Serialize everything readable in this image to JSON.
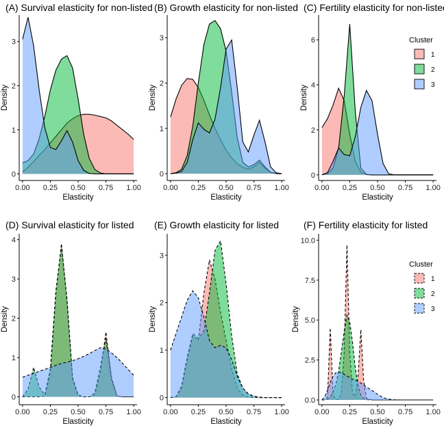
{
  "colors": {
    "cluster1": "#F8766D",
    "cluster2": "#00BA38",
    "cluster3": "#619CFF",
    "outline": "#000000"
  },
  "legend": {
    "title": "Cluster",
    "entries": [
      "1",
      "2",
      "3"
    ]
  },
  "chart_data": [
    {
      "type": "area",
      "title": "(A) Survival elasticity for non-listed",
      "xlabel": "Elasticity",
      "ylabel": "Density",
      "xlim": [
        -0.03,
        1.03
      ],
      "ylim": [
        -0.15,
        3.6
      ],
      "line_style": "solid",
      "xticks": [
        "0.00",
        "0.25",
        "0.50",
        "0.75",
        "1.00"
      ],
      "yticks": [
        "0",
        "1",
        "2",
        "3"
      ],
      "x": [
        0,
        0.05,
        0.1,
        0.15,
        0.2,
        0.25,
        0.3,
        0.35,
        0.4,
        0.45,
        0.5,
        0.55,
        0.6,
        0.65,
        0.7,
        0.75,
        0.8,
        0.85,
        0.9,
        0.95,
        1
      ],
      "series": [
        {
          "name": "1",
          "values": [
            0.05,
            0.15,
            0.28,
            0.42,
            0.55,
            0.7,
            0.85,
            1.0,
            1.15,
            1.25,
            1.32,
            1.35,
            1.35,
            1.33,
            1.3,
            1.27,
            1.2,
            1.1,
            1.0,
            0.9,
            0.78
          ]
        },
        {
          "name": "2",
          "values": [
            0.25,
            0.3,
            0.45,
            0.8,
            1.3,
            1.9,
            2.35,
            2.6,
            2.68,
            2.4,
            1.7,
            0.9,
            0.35,
            0.1,
            0.02,
            0,
            0,
            0,
            0,
            0,
            0
          ]
        },
        {
          "name": "3",
          "values": [
            3.05,
            3.55,
            2.9,
            1.9,
            1.05,
            0.6,
            0.55,
            0.75,
            0.98,
            0.72,
            0.3,
            0.08,
            0.01,
            0,
            0,
            0,
            0,
            0,
            0,
            0,
            0
          ]
        }
      ]
    },
    {
      "type": "area",
      "title": "(B) Growth elasticity for non-listed",
      "xlabel": "Elasticity",
      "ylabel": "Density",
      "xlim": [
        -0.03,
        1.03
      ],
      "ylim": [
        -0.15,
        3.5
      ],
      "line_style": "solid",
      "xticks": [
        "0.00",
        "0.25",
        "0.50",
        "0.75",
        "1.00"
      ],
      "yticks": [
        "0",
        "1",
        "2",
        "3"
      ],
      "x": [
        0,
        0.05,
        0.1,
        0.15,
        0.2,
        0.25,
        0.3,
        0.35,
        0.4,
        0.45,
        0.5,
        0.55,
        0.6,
        0.65,
        0.7,
        0.75,
        0.8,
        0.85,
        0.9,
        0.95,
        1
      ],
      "series": [
        {
          "name": "1",
          "values": [
            1.25,
            1.65,
            1.95,
            2.1,
            2.08,
            1.9,
            1.62,
            1.3,
            1.0,
            0.75,
            0.52,
            0.35,
            0.22,
            0.14,
            0.1,
            0.15,
            0.25,
            0.12,
            0.03,
            0.01,
            0
          ]
        },
        {
          "name": "2",
          "values": [
            0,
            0.02,
            0.1,
            0.4,
            1.05,
            2.0,
            2.85,
            3.3,
            3.38,
            3.2,
            2.7,
            1.8,
            0.8,
            0.25,
            0.15,
            0.2,
            0.3,
            0.15,
            0.03,
            0,
            0
          ]
        },
        {
          "name": "3",
          "values": [
            0,
            0.01,
            0.05,
            0.25,
            0.75,
            1.12,
            0.98,
            0.9,
            1.2,
            1.9,
            2.75,
            2.95,
            1.9,
            0.7,
            0.48,
            0.85,
            1.18,
            0.7,
            0.15,
            0.02,
            0
          ]
        }
      ]
    },
    {
      "type": "area",
      "title": "(C) Fertility elasticity for non-listed",
      "xlabel": "Elasticity",
      "ylabel": "Density",
      "xlim": [
        -0.03,
        1.03
      ],
      "ylim": [
        -0.25,
        7.1
      ],
      "line_style": "solid",
      "xticks": [
        "0.00",
        "0.25",
        "0.50",
        "0.75",
        "1.00"
      ],
      "yticks": [
        "0",
        "2",
        "4",
        "6"
      ],
      "x": [
        0,
        0.05,
        0.1,
        0.15,
        0.2,
        0.25,
        0.3,
        0.35,
        0.4,
        0.45,
        0.5,
        0.55,
        0.6,
        0.65,
        0.7,
        0.75,
        0.8,
        0.85,
        0.9,
        0.95,
        1
      ],
      "series": [
        {
          "name": "1",
          "values": [
            2.1,
            2.5,
            3.1,
            3.85,
            3.3,
            1.8,
            0.6,
            0.12,
            0.01,
            0,
            0,
            0,
            0,
            0,
            0,
            0,
            0,
            0,
            0,
            0,
            0
          ]
        },
        {
          "name": "2",
          "values": [
            0,
            0.05,
            0.3,
            1.2,
            3.5,
            6.7,
            2.8,
            0.3,
            0.02,
            0,
            0,
            0,
            0,
            0,
            0,
            0,
            0,
            0,
            0,
            0,
            0
          ]
        },
        {
          "name": "3",
          "values": [
            0,
            0.1,
            0.6,
            1.2,
            0.9,
            0.85,
            1.7,
            3.0,
            3.75,
            3.3,
            1.8,
            0.5,
            0.05,
            0,
            0,
            0,
            0,
            0,
            0,
            0,
            0
          ]
        }
      ]
    },
    {
      "type": "area",
      "title": "(D) Survival elasticity for listed",
      "xlabel": "Elasticity",
      "ylabel": "Density",
      "xlim": [
        -0.03,
        1.03
      ],
      "ylim": [
        -0.2,
        4.15
      ],
      "line_style": "dashed",
      "xticks": [
        "0.00",
        "0.25",
        "0.50",
        "0.75",
        "1.00"
      ],
      "yticks": [
        "0",
        "1",
        "2",
        "3",
        "4"
      ],
      "x": [
        0,
        0.05,
        0.1,
        0.15,
        0.2,
        0.25,
        0.3,
        0.35,
        0.4,
        0.45,
        0.5,
        0.55,
        0.6,
        0.65,
        0.7,
        0.75,
        0.8,
        0.85,
        0.9,
        0.95,
        1
      ],
      "series": [
        {
          "name": "1",
          "values": [
            0,
            0,
            0,
            0,
            0.02,
            0.6,
            2.6,
            3.9,
            2.4,
            0.45,
            0.03,
            0,
            0,
            0.05,
            0.6,
            1.65,
            0.5,
            0.02,
            0,
            0,
            0
          ]
        },
        {
          "name": "2",
          "values": [
            0,
            0.2,
            0.75,
            0.25,
            0.05,
            0.7,
            2.7,
            3.85,
            2.5,
            0.5,
            0.05,
            0,
            0,
            0.1,
            0.75,
            1.5,
            0.45,
            0.02,
            0,
            0,
            0
          ]
        },
        {
          "name": "3",
          "values": [
            0.5,
            0.55,
            0.6,
            0.65,
            0.7,
            0.75,
            0.8,
            0.85,
            0.88,
            0.92,
            0.97,
            1.03,
            1.1,
            1.18,
            1.25,
            1.22,
            1.12,
            1.0,
            0.85,
            0.7,
            0.55
          ]
        }
      ]
    },
    {
      "type": "area",
      "title": "(E) Growth elasticity for listed",
      "xlabel": "Elasticity",
      "ylabel": "Density",
      "xlim": [
        -0.03,
        1.03
      ],
      "ylim": [
        -0.15,
        3.45
      ],
      "line_style": "dashed",
      "xticks": [
        "0.00",
        "0.25",
        "0.50",
        "0.75",
        "1.00"
      ],
      "yticks": [
        "0",
        "1",
        "2",
        "3"
      ],
      "x": [
        0,
        0.05,
        0.1,
        0.15,
        0.2,
        0.25,
        0.3,
        0.35,
        0.4,
        0.45,
        0.5,
        0.55,
        0.6,
        0.65,
        0.7,
        0.75,
        0.8,
        0.85,
        0.9,
        0.95,
        1
      ],
      "series": [
        {
          "name": "1",
          "values": [
            0,
            0.02,
            0.2,
            0.8,
            1.3,
            1.2,
            2.2,
            2.9,
            2.5,
            1.8,
            1.2,
            0.6,
            0.2,
            0.05,
            0.01,
            0,
            0,
            0,
            0,
            0,
            0
          ]
        },
        {
          "name": "2",
          "values": [
            0,
            0.02,
            0.25,
            0.85,
            1.35,
            1.25,
            1.4,
            2.2,
            3.1,
            3.3,
            2.4,
            1.3,
            0.5,
            0.2,
            0.07,
            0.02,
            0,
            0,
            0,
            0,
            0
          ]
        },
        {
          "name": "3",
          "values": [
            1.0,
            1.35,
            1.7,
            2.05,
            2.25,
            2.1,
            1.7,
            1.2,
            1.05,
            1.1,
            1.05,
            0.8,
            0.45,
            0.2,
            0.08,
            0.03,
            0.01,
            0,
            0,
            0,
            0
          ]
        }
      ]
    },
    {
      "type": "area",
      "title": "(F) Fertility elasticity for listed",
      "xlabel": "Elasticity",
      "ylabel": "Density",
      "xlim": [
        -0.03,
        1.03
      ],
      "ylim": [
        -0.3,
        10.4
      ],
      "line_style": "dashed",
      "xticks": [
        "0.00",
        "0.25",
        "0.50",
        "0.75",
        "1.00"
      ],
      "yticks": [
        "0.0",
        "2.5",
        "5.0",
        "7.5",
        "10.0"
      ],
      "x": [
        0,
        0.025,
        0.05,
        0.075,
        0.1,
        0.125,
        0.15,
        0.175,
        0.2,
        0.225,
        0.25,
        0.275,
        0.3,
        0.325,
        0.35,
        0.375,
        0.4,
        0.45,
        0.5,
        0.55,
        0.6,
        0.65,
        0.7,
        0.75,
        0.8,
        0.85,
        0.9,
        0.95,
        1
      ],
      "series": [
        {
          "name": "1",
          "values": [
            0,
            0.01,
            0.2,
            4.5,
            0.3,
            0.02,
            0.05,
            0.4,
            3.0,
            9.7,
            3.0,
            0.4,
            0.2,
            1.5,
            4.4,
            1.2,
            0.1,
            0,
            0,
            0,
            0,
            0,
            0,
            0,
            0,
            0,
            0,
            0,
            0
          ]
        },
        {
          "name": "2",
          "values": [
            0,
            0.01,
            0.05,
            0.2,
            0.5,
            1.0,
            1.8,
            3.0,
            4.3,
            5.3,
            4.9,
            3.6,
            2.0,
            0.9,
            0.3,
            0.1,
            0.02,
            0,
            0,
            0,
            0,
            0,
            0,
            0,
            0,
            0,
            0,
            0,
            0
          ]
        },
        {
          "name": "3",
          "values": [
            0,
            0.2,
            0.6,
            1.1,
            1.5,
            1.7,
            1.75,
            1.7,
            1.6,
            1.5,
            1.4,
            1.3,
            1.25,
            1.15,
            1.05,
            0.95,
            0.8,
            0.6,
            0.35,
            0.15,
            0.05,
            0.01,
            0,
            0,
            0,
            0,
            0,
            0,
            0
          ]
        }
      ]
    }
  ]
}
